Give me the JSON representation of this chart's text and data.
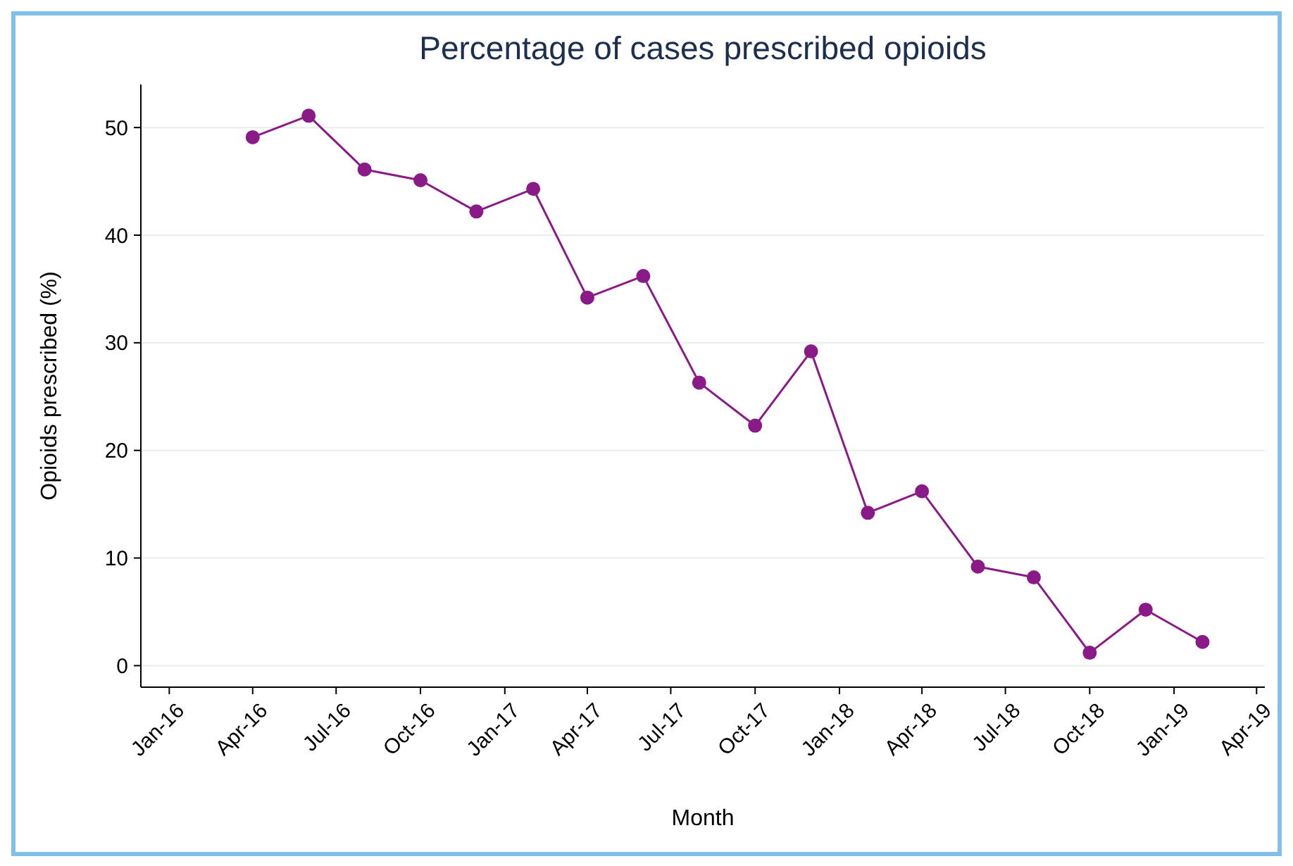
{
  "chart_data": {
    "type": "line",
    "title": "Percentage of cases prescribed opioids",
    "xlabel": "Month",
    "ylabel": "Opioids prescribed (%)",
    "x": [
      "2016-04",
      "2016-06",
      "2016-08",
      "2016-10",
      "2016-12",
      "2017-02",
      "2017-04",
      "2017-06",
      "2017-08",
      "2017-10",
      "2017-12",
      "2018-02",
      "2018-04",
      "2018-06",
      "2018-08",
      "2018-10",
      "2018-12",
      "2019-02"
    ],
    "series": [
      {
        "color": "#8b1a89",
        "values": [
          49.1,
          51.1,
          46.1,
          45.1,
          42.2,
          44.3,
          34.2,
          36.2,
          26.3,
          22.3,
          29.2,
          14.2,
          16.2,
          9.2,
          8.2,
          1.2,
          5.2,
          2.2
        ]
      }
    ],
    "xlim": [
      "2015-12-01",
      "2019-04-10"
    ],
    "xticks": [
      {
        "value": "2016-01",
        "label": "Jan-16"
      },
      {
        "value": "2016-04",
        "label": "Apr-16"
      },
      {
        "value": "2016-07",
        "label": "Jul-16"
      },
      {
        "value": "2016-10",
        "label": "Oct-16"
      },
      {
        "value": "2017-01",
        "label": "Jan-17"
      },
      {
        "value": "2017-04",
        "label": "Apr-17"
      },
      {
        "value": "2017-07",
        "label": "Jul-17"
      },
      {
        "value": "2017-10",
        "label": "Oct-17"
      },
      {
        "value": "2018-01",
        "label": "Jan-18"
      },
      {
        "value": "2018-04",
        "label": "Apr-18"
      },
      {
        "value": "2018-07",
        "label": "Jul-18"
      },
      {
        "value": "2018-10",
        "label": "Oct-18"
      },
      {
        "value": "2019-01",
        "label": "Jan-19"
      },
      {
        "value": "2019-04",
        "label": "Apr-19"
      }
    ],
    "ylim": [
      -2,
      54
    ],
    "yticks": [
      0,
      10,
      20,
      30,
      40,
      50
    ],
    "grid": "y",
    "marker": "circle",
    "line_style": "solid"
  }
}
